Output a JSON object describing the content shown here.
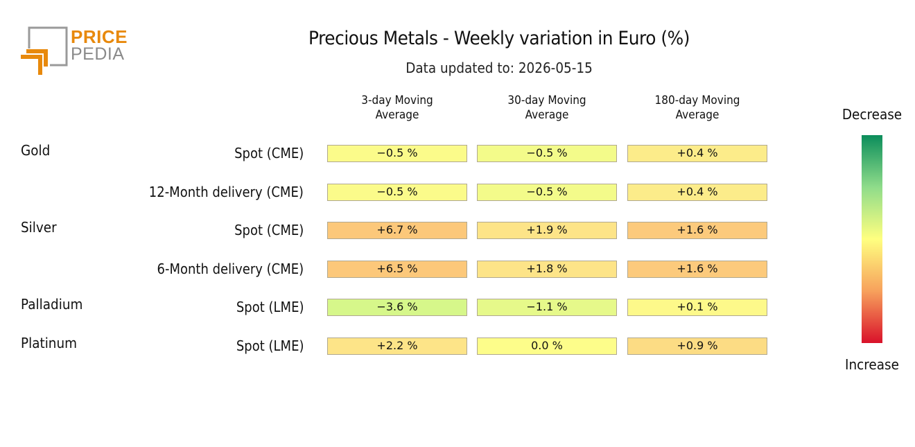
{
  "logo": {
    "line1": "PRICE",
    "line2": "PEDIA"
  },
  "header": {
    "title": "Precious Metals - Weekly variation in Euro (%)",
    "subtitle": "Data updated to: 2026-05-15"
  },
  "legend": {
    "top_label": "Decrease",
    "bottom_label": "Increase"
  },
  "chart_data": {
    "type": "table",
    "columns": [
      "3-day Moving\nAverage",
      "30-day Moving\nAverage",
      "180-day Moving\nAverage"
    ],
    "rows": [
      {
        "group": "Gold",
        "label": "Spot (CME)",
        "values": [
          "−0.5 %",
          "−0.5 %",
          "+0.4 %"
        ],
        "colors": [
          "#fbfb8a",
          "#f3fb8a",
          "#fcec8a"
        ]
      },
      {
        "group": "",
        "label": "12-Month delivery (CME)",
        "values": [
          "−0.5 %",
          "−0.5 %",
          "+0.4 %"
        ],
        "colors": [
          "#fbfb8a",
          "#f3fb8a",
          "#fcec8a"
        ]
      },
      {
        "group": "Silver",
        "label": "Spot (CME)",
        "values": [
          "+6.7 %",
          "+1.9 %",
          "+1.6 %"
        ],
        "colors": [
          "#fcc87a",
          "#fde488",
          "#fcca7c"
        ]
      },
      {
        "group": "",
        "label": "6-Month delivery (CME)",
        "values": [
          "+6.5 %",
          "+1.8 %",
          "+1.6 %"
        ],
        "colors": [
          "#fcc87a",
          "#fde488",
          "#fcca7c"
        ]
      },
      {
        "group": "Palladium",
        "label": "Spot (LME)",
        "values": [
          "−3.6 %",
          "−1.1 %",
          "+0.1 %"
        ],
        "colors": [
          "#d6f78a",
          "#e6f98a",
          "#fdf98a"
        ]
      },
      {
        "group": "Platinum",
        "label": "Spot (LME)",
        "values": [
          "+2.2 %",
          "0.0 %",
          "+0.9 %"
        ],
        "colors": [
          "#fde488",
          "#fdfd8a",
          "#fcdc84"
        ]
      }
    ]
  }
}
